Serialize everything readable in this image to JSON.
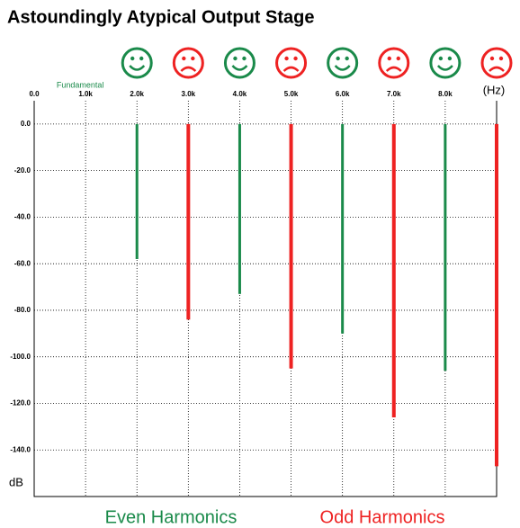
{
  "chart_data": {
    "type": "bar",
    "title": "Astoundingly Atypical Output Stage",
    "annotation": "Fundamental",
    "x_label": "(Hz)",
    "y_label": "dB",
    "xlim": [
      0,
      9000
    ],
    "xticks": [
      {
        "value": 0,
        "label": "0.0"
      },
      {
        "value": 1000,
        "label": "1.0k"
      },
      {
        "value": 2000,
        "label": "2.0k"
      },
      {
        "value": 3000,
        "label": "3.0k"
      },
      {
        "value": 4000,
        "label": "4.0k"
      },
      {
        "value": 5000,
        "label": "5.0k"
      },
      {
        "value": 6000,
        "label": "6.0k"
      },
      {
        "value": 7000,
        "label": "7.0k"
      },
      {
        "value": 8000,
        "label": "8.0k"
      }
    ],
    "ylim": [
      -160,
      10
    ],
    "yticks": [
      {
        "value": 0,
        "label": "0.0"
      },
      {
        "value": -20,
        "label": "-20.0"
      },
      {
        "value": -40,
        "label": "-40.0"
      },
      {
        "value": -60,
        "label": "-60.0"
      },
      {
        "value": -80,
        "label": "-80.0"
      },
      {
        "value": -100,
        "label": "-100.0"
      },
      {
        "value": -120,
        "label": "-120.0"
      },
      {
        "value": -140,
        "label": "-140.0"
      }
    ],
    "grid": true,
    "series": [
      {
        "name": "Even Harmonics",
        "color": "#1a8a4a",
        "x": [
          2000,
          4000,
          6000,
          8000
        ],
        "values": [
          -58,
          -73,
          -90,
          -106
        ]
      },
      {
        "name": "Odd Harmonics",
        "color": "#ee2222",
        "x": [
          3000,
          5000,
          7000,
          9000
        ],
        "values": [
          -84,
          -105,
          -126,
          -147
        ]
      }
    ]
  }
}
